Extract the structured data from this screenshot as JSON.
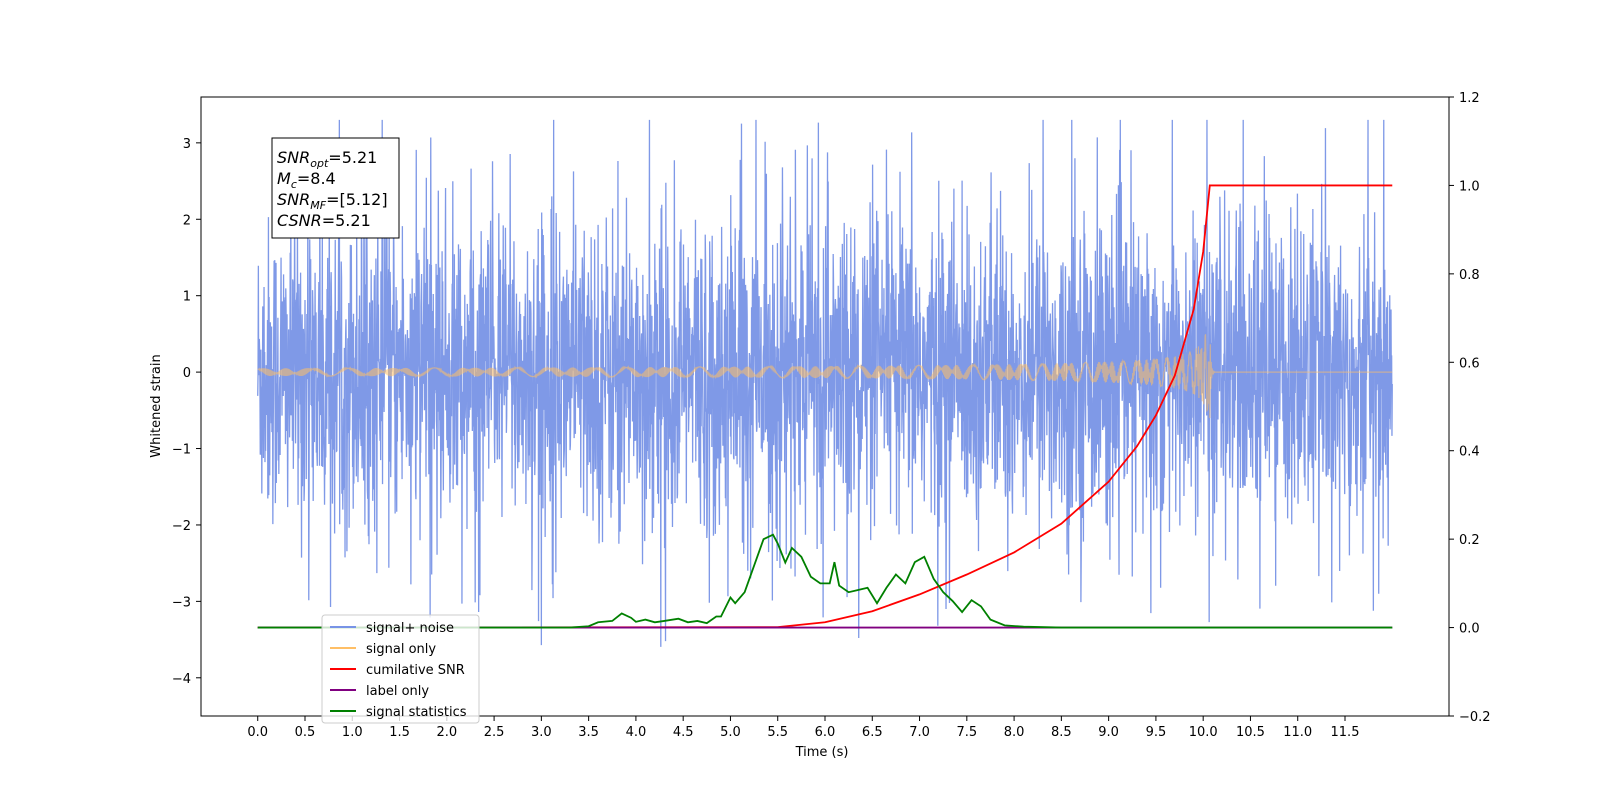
{
  "chart_data": {
    "type": "line",
    "title": "",
    "xlabel": "Time (s)",
    "ylabel": "Whitened strain",
    "ylabel_right": "",
    "xlim": [
      -0.6,
      12.6
    ],
    "ylim": [
      -4.5,
      3.6
    ],
    "ylim_right": [
      -0.2,
      1.2
    ],
    "x_ticks": [
      "0.0",
      "0.5",
      "1.0",
      "1.5",
      "2.0",
      "2.5",
      "3.0",
      "3.5",
      "4.0",
      "4.5",
      "5.0",
      "5.5",
      "6.0",
      "6.5",
      "7.0",
      "7.5",
      "8.0",
      "8.5",
      "9.0",
      "9.5",
      "10.0",
      "10.5",
      "11.0",
      "11.5"
    ],
    "y_ticks": [
      "3",
      "2",
      "1",
      "0",
      "−1",
      "−2",
      "−3",
      "−4"
    ],
    "y_ticks_right": [
      "1.2",
      "1.0",
      "0.8",
      "0.6",
      "0.4",
      "0.2",
      "0.0",
      "−0.2"
    ],
    "grid": false,
    "legend_position": "lower-left",
    "legend": [
      {
        "label": "signal+ noise",
        "color": "#7893e6"
      },
      {
        "label": "signal only",
        "color": "#ffbf66"
      },
      {
        "label": "cumilative SNR",
        "color": "#ff0000"
      },
      {
        "label": "label only",
        "color": "#800080"
      },
      {
        "label": "signal statistics",
        "color": "#008000"
      }
    ],
    "annotation": {
      "lines": [
        {
          "base": "SNR",
          "sub": "opt",
          "rest": "=5.21"
        },
        {
          "base": "M",
          "sub": "c",
          "rest": "=8.4"
        },
        {
          "base": "SNR",
          "sub": "MF",
          "rest": "=[5.12]"
        },
        {
          "base": "CSNR",
          "sub": "",
          "rest": "=5.21"
        }
      ]
    },
    "series": [
      {
        "name": "signal+ noise",
        "axis": "left",
        "description": "whitened noise with std ~1 over t=0..12 s",
        "t_range": [
          0.0,
          12.0
        ],
        "approx_envelope": [
          -4.1,
          3.3
        ]
      },
      {
        "name": "signal only",
        "axis": "left",
        "description": "chirp growing to merger at ~10.07 s",
        "merger_time": 10.07,
        "peak_amplitude": 0.6
      },
      {
        "name": "cumilative SNR",
        "axis": "right",
        "x": [
          0.0,
          5.5,
          6.0,
          6.5,
          7.0,
          7.5,
          8.0,
          8.5,
          9.0,
          9.3,
          9.5,
          9.7,
          9.9,
          10.0,
          10.07,
          12.0
        ],
        "y": [
          0.0,
          0.001,
          0.012,
          0.037,
          0.075,
          0.12,
          0.17,
          0.235,
          0.33,
          0.41,
          0.48,
          0.57,
          0.72,
          0.85,
          1.0,
          1.0
        ]
      },
      {
        "name": "label only",
        "axis": "right",
        "x": [
          0.0,
          12.0
        ],
        "y": [
          0.0,
          0.0
        ]
      },
      {
        "name": "signal statistics",
        "axis": "right",
        "x": [
          0.0,
          3.3,
          3.5,
          3.6,
          3.75,
          3.85,
          3.95,
          4.0,
          4.1,
          4.2,
          4.3,
          4.45,
          4.55,
          4.65,
          4.75,
          4.85,
          4.9,
          5.0,
          5.05,
          5.15,
          5.25,
          5.35,
          5.45,
          5.5,
          5.58,
          5.65,
          5.75,
          5.85,
          5.95,
          6.05,
          6.1,
          6.15,
          6.25,
          6.35,
          6.45,
          6.55,
          6.65,
          6.75,
          6.85,
          6.95,
          7.05,
          7.15,
          7.25,
          7.35,
          7.45,
          7.55,
          7.65,
          7.75,
          7.9,
          8.1,
          8.5,
          12.0
        ],
        "y": [
          0.0,
          0.0,
          0.003,
          0.012,
          0.015,
          0.032,
          0.022,
          0.013,
          0.018,
          0.012,
          0.015,
          0.02,
          0.012,
          0.015,
          0.01,
          0.025,
          0.025,
          0.068,
          0.055,
          0.08,
          0.14,
          0.2,
          0.21,
          0.19,
          0.147,
          0.18,
          0.16,
          0.115,
          0.1,
          0.1,
          0.148,
          0.095,
          0.08,
          0.085,
          0.09,
          0.055,
          0.09,
          0.12,
          0.1,
          0.148,
          0.16,
          0.11,
          0.08,
          0.06,
          0.035,
          0.062,
          0.048,
          0.018,
          0.005,
          0.002,
          0.0,
          0.0
        ]
      }
    ]
  }
}
